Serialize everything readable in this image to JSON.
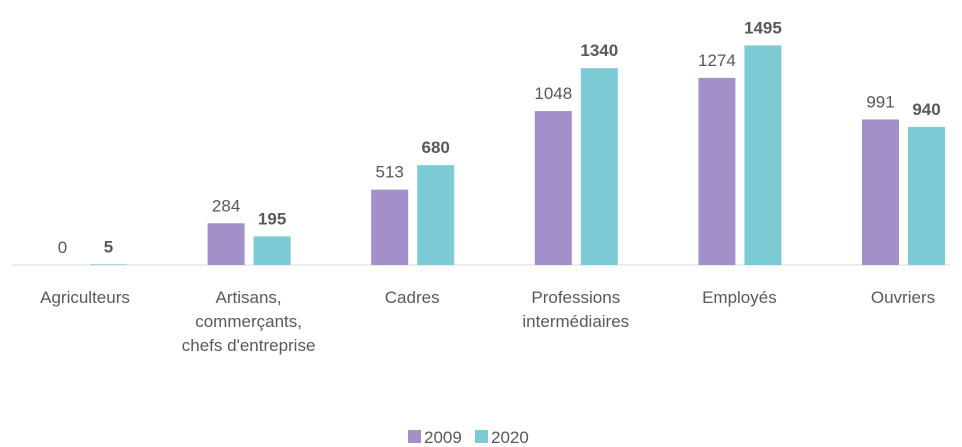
{
  "chart_data": {
    "type": "bar",
    "categories": [
      "Agriculteurs",
      "Artisans, commerçants, chefs d'entreprise",
      "Cadres",
      "Professions intermédiaires",
      "Employés",
      "Ouvriers"
    ],
    "series": [
      {
        "name": "2009",
        "color": "#a291c8",
        "values": [
          0,
          284,
          513,
          1048,
          1274,
          991
        ]
      },
      {
        "name": "2020",
        "color": "#7ccad4",
        "values": [
          5,
          195,
          680,
          1340,
          1495,
          940
        ]
      }
    ],
    "ylim": [
      0,
      1600
    ],
    "legend": "bottom"
  }
}
